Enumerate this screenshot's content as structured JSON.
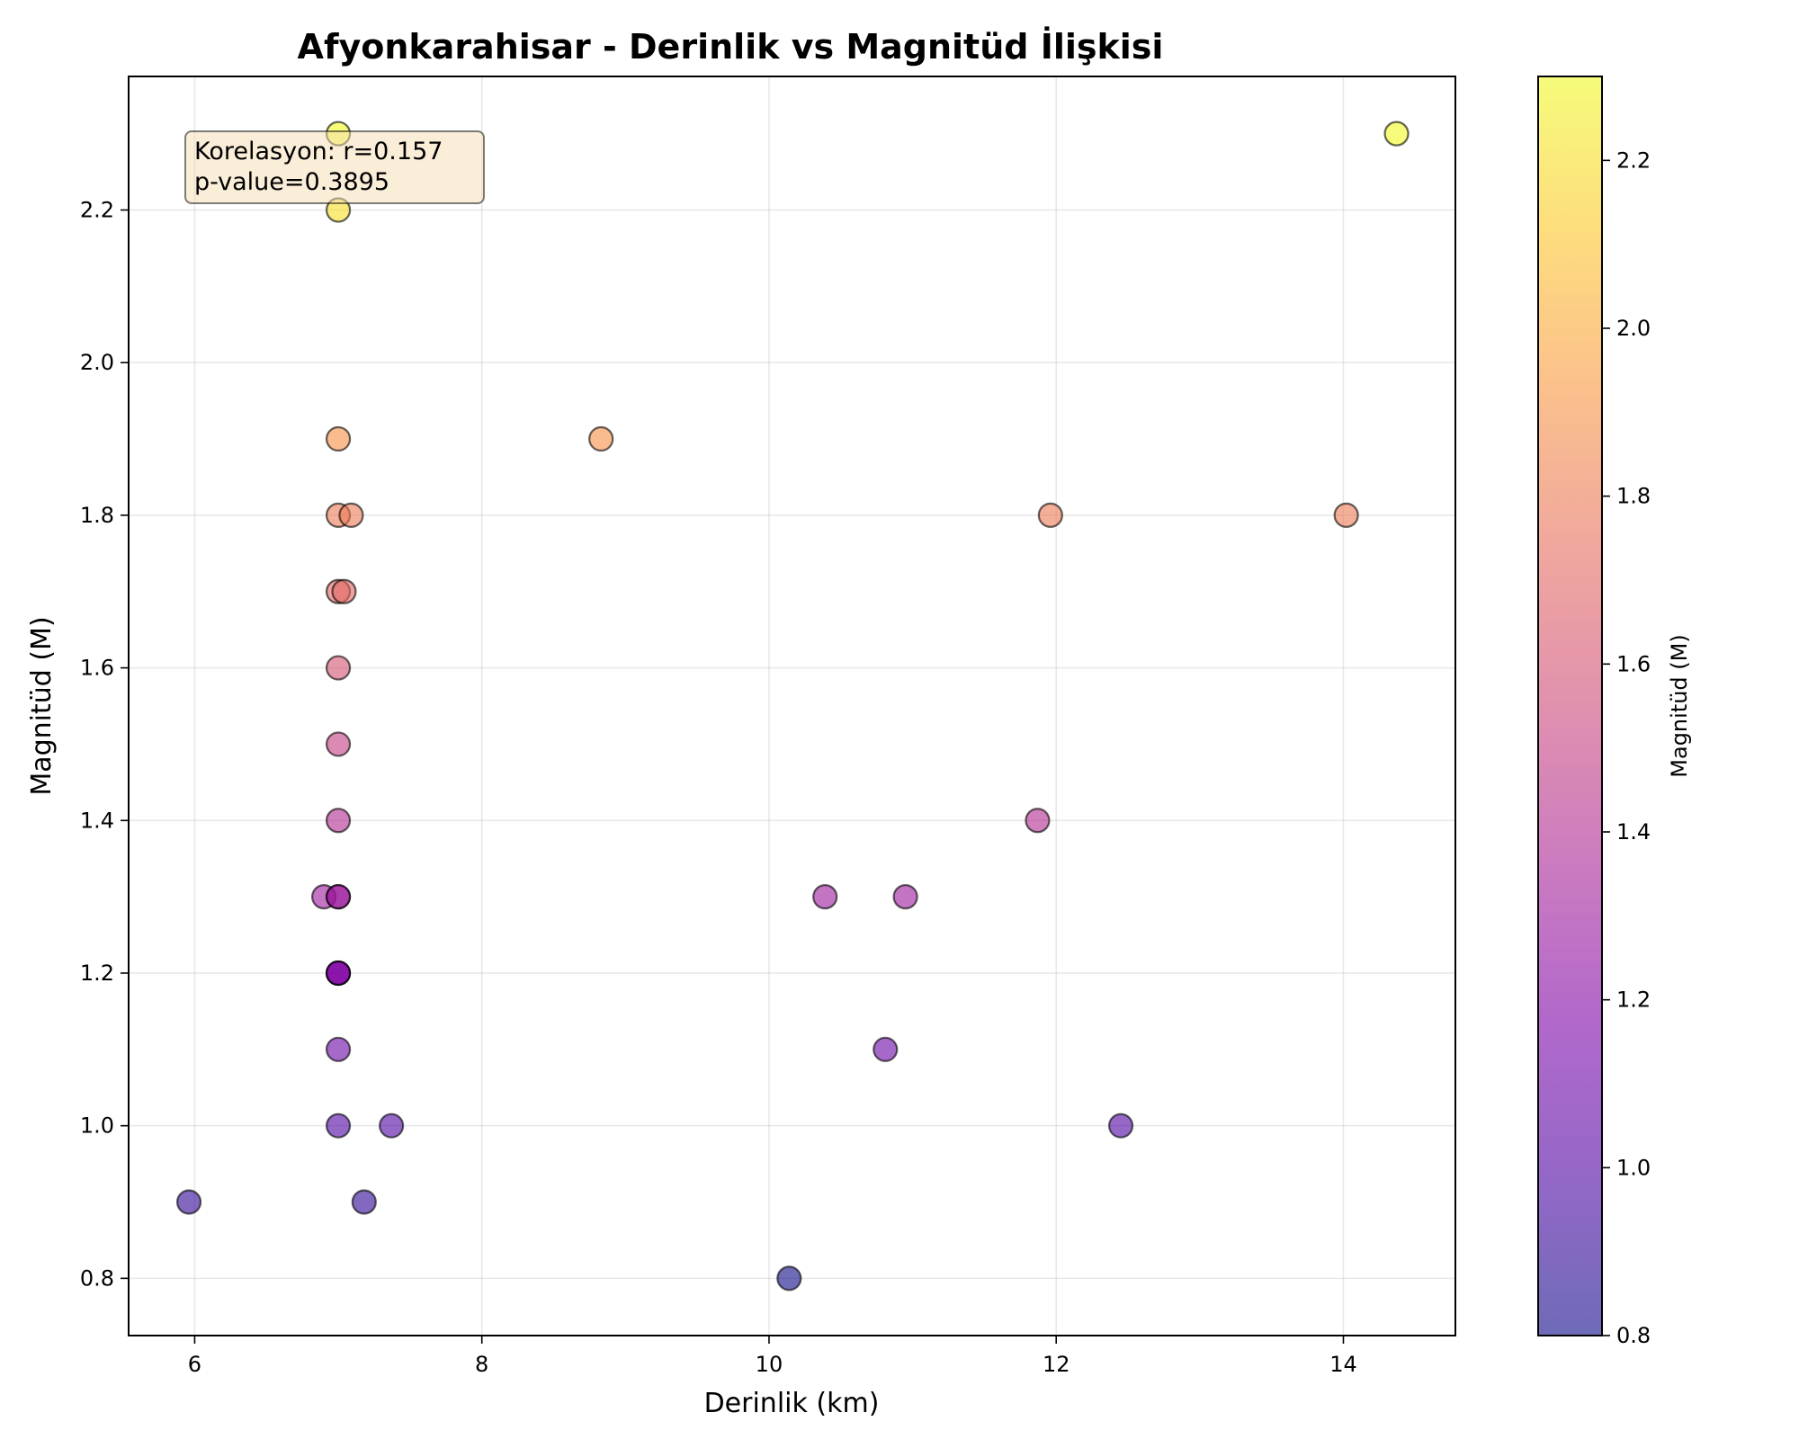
{
  "chart_data": {
    "type": "scatter",
    "title": "Afyonkarahisar - Derinlik vs Magnitüd İlişkisi",
    "xlabel": "Derinlik (km)",
    "ylabel": "Magnitüd (M)",
    "xlim": [
      5.54,
      14.78
    ],
    "ylim": [
      0.725,
      2.375
    ],
    "xticks": [
      6,
      8,
      10,
      12,
      14
    ],
    "yticks": [
      0.8,
      1.0,
      1.2,
      1.4,
      1.6,
      1.8,
      2.0,
      2.2
    ],
    "grid": true,
    "colormap": "plasma",
    "color_alpha": 0.6,
    "colorbar": {
      "label": "Magnitüd (M)",
      "range": [
        0.8,
        2.3
      ],
      "ticks": [
        0.8,
        1.0,
        1.2,
        1.4,
        1.6,
        1.8,
        2.0,
        2.2
      ]
    },
    "annotation": {
      "line1": "Korelasyon: r=0.157",
      "line2": "p-value=0.3895"
    },
    "points": [
      {
        "x": 7.0,
        "y": 2.3
      },
      {
        "x": 7.0,
        "y": 2.2
      },
      {
        "x": 7.0,
        "y": 1.9
      },
      {
        "x": 8.83,
        "y": 1.9
      },
      {
        "x": 7.0,
        "y": 1.8
      },
      {
        "x": 7.09,
        "y": 1.8
      },
      {
        "x": 11.96,
        "y": 1.8
      },
      {
        "x": 14.02,
        "y": 1.8
      },
      {
        "x": 7.0,
        "y": 1.7
      },
      {
        "x": 7.04,
        "y": 1.7
      },
      {
        "x": 7.0,
        "y": 1.6
      },
      {
        "x": 7.0,
        "y": 1.5
      },
      {
        "x": 7.0,
        "y": 1.4
      },
      {
        "x": 11.87,
        "y": 1.4
      },
      {
        "x": 6.9,
        "y": 1.3
      },
      {
        "x": 7.0,
        "y": 1.3
      },
      {
        "x": 7.0,
        "y": 1.3
      },
      {
        "x": 10.39,
        "y": 1.3
      },
      {
        "x": 10.95,
        "y": 1.3
      },
      {
        "x": 7.0,
        "y": 1.2
      },
      {
        "x": 7.0,
        "y": 1.2
      },
      {
        "x": 7.0,
        "y": 1.2
      },
      {
        "x": 7.0,
        "y": 1.1
      },
      {
        "x": 10.81,
        "y": 1.1
      },
      {
        "x": 7.0,
        "y": 1.0
      },
      {
        "x": 7.37,
        "y": 1.0
      },
      {
        "x": 12.45,
        "y": 1.0
      },
      {
        "x": 5.96,
        "y": 0.9
      },
      {
        "x": 7.18,
        "y": 0.9
      },
      {
        "x": 10.14,
        "y": 0.8
      },
      {
        "x": 14.37,
        "y": 2.3
      }
    ]
  }
}
